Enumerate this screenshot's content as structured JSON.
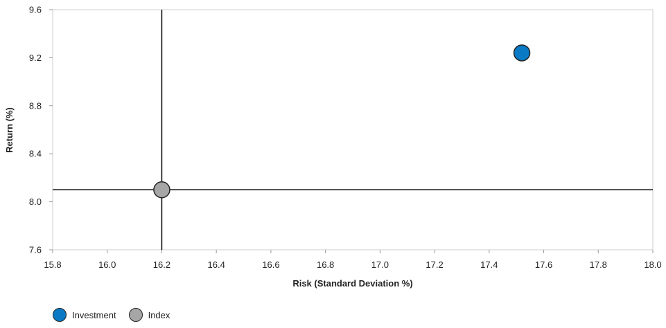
{
  "chart_data": {
    "type": "scatter",
    "xlabel": "Risk (Standard Deviation %)",
    "ylabel": "Return (%)",
    "xlim": [
      15.8,
      18.0
    ],
    "ylim": [
      7.6,
      9.6
    ],
    "x_ticks": [
      "15.8",
      "16.0",
      "16.2",
      "16.4",
      "16.6",
      "16.8",
      "17.0",
      "17.2",
      "17.4",
      "17.6",
      "17.8",
      "18.0"
    ],
    "y_ticks": [
      "9.6",
      "9.2",
      "8.8",
      "8.4",
      "8.0",
      "7.6"
    ],
    "crosshair": {
      "x": 16.2,
      "y": 8.1
    },
    "series": [
      {
        "name": "Investment",
        "color": "#0a7ac4",
        "x": 17.52,
        "y": 9.24
      },
      {
        "name": "Index",
        "color": "#a6a6a6",
        "x": 16.2,
        "y": 8.1
      }
    ],
    "grid": false,
    "legend_position": "bottom-left"
  }
}
